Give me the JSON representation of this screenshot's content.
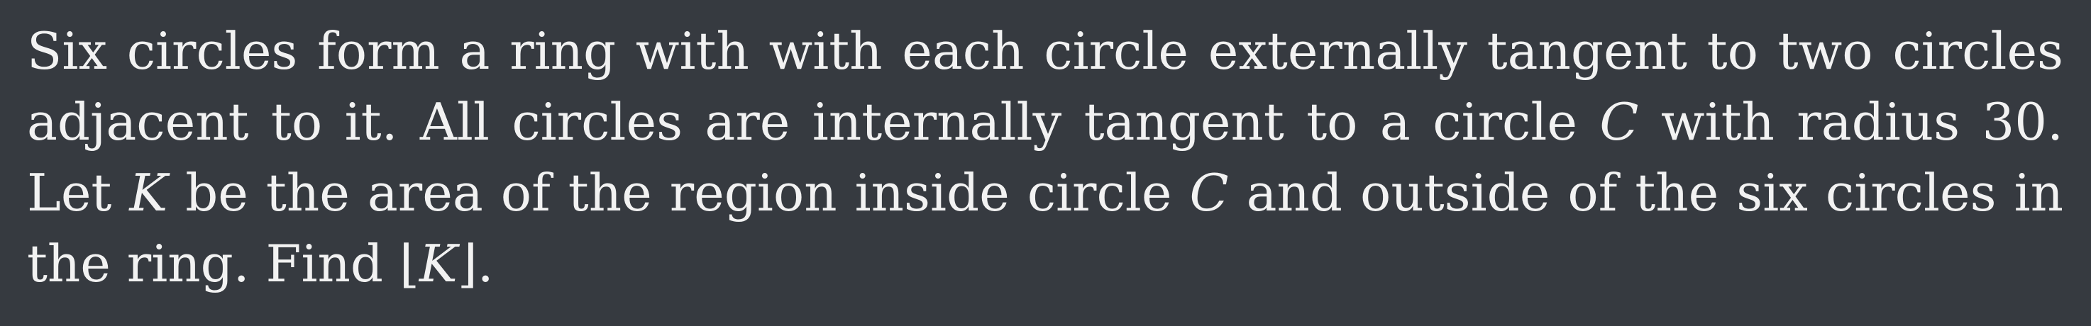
{
  "problem": {
    "lines": [
      {
        "segments": [
          {
            "text": "Six circles form a ring with with each circle externally tangent to two circles"
          }
        ]
      },
      {
        "segments": [
          {
            "text": "adjacent to it.  All circles are internally tangent to a circle "
          },
          {
            "math": "C"
          },
          {
            "text": " with radius 30."
          }
        ]
      },
      {
        "segments": [
          {
            "text": "Let "
          },
          {
            "math": "K"
          },
          {
            "text": " be the area of the region inside circle "
          },
          {
            "math": "C"
          },
          {
            "text": " and outside of the six circles in"
          }
        ]
      },
      {
        "segments": [
          {
            "text": "the ring. Find "
          },
          {
            "floor_left": "⌊"
          },
          {
            "math": "K"
          },
          {
            "floor_right": "⌋"
          },
          {
            "text": "."
          }
        ]
      }
    ]
  }
}
